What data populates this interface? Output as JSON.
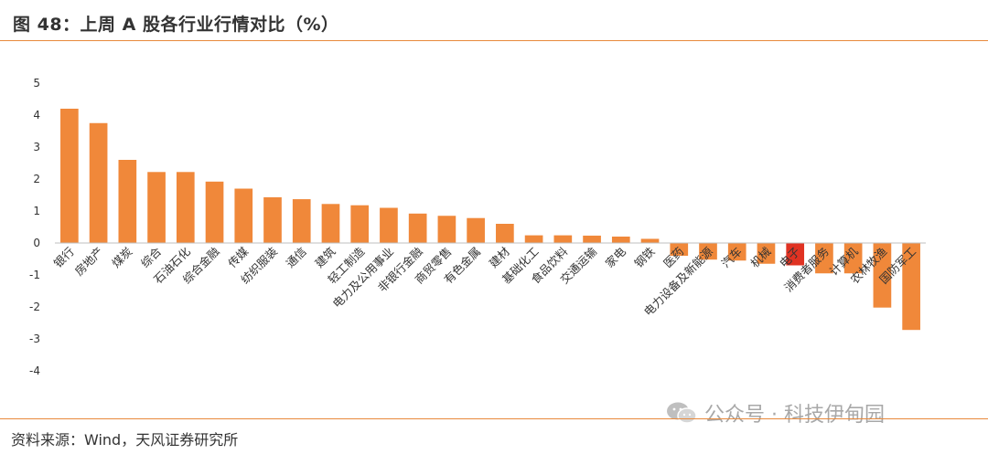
{
  "title": "图 48：上周 A 股各行业行情对比（%）",
  "source": "资料来源：Wind，天风证券研究所",
  "watermark": "公众号 · 科技伊甸园",
  "colors": {
    "bar": "#F0883A",
    "highlight": "#E03222",
    "accent": "#E8893C"
  },
  "chart_data": {
    "type": "bar",
    "title": "",
    "xlabel": "",
    "ylabel": "",
    "ylim": [
      -4,
      5
    ],
    "yticks": [
      5,
      4,
      3,
      2,
      1,
      0,
      -1,
      -2,
      -3,
      -4
    ],
    "grid": false,
    "highlight_category": "电子",
    "categories": [
      "银行",
      "房地产",
      "煤炭",
      "综合",
      "石油石化",
      "综合金融",
      "传媒",
      "纺织服装",
      "通信",
      "建筑",
      "轻工制造",
      "电力及公用事业",
      "非银行金融",
      "商贸零售",
      "有色金属",
      "建材",
      "基础化工",
      "食品饮料",
      "交通运输",
      "家电",
      "钢铁",
      "医药",
      "电力设备及新能源",
      "汽车",
      "机械",
      "电子",
      "消费者服务",
      "计算机",
      "农林牧渔",
      "国防军工"
    ],
    "values": [
      4.2,
      3.75,
      2.6,
      2.22,
      2.22,
      1.92,
      1.7,
      1.43,
      1.37,
      1.22,
      1.18,
      1.1,
      0.92,
      0.85,
      0.78,
      0.6,
      0.24,
      0.24,
      0.23,
      0.2,
      0.13,
      -0.4,
      -0.52,
      -0.55,
      -0.65,
      -0.7,
      -0.95,
      -0.95,
      -2.02,
      -2.72
    ]
  }
}
